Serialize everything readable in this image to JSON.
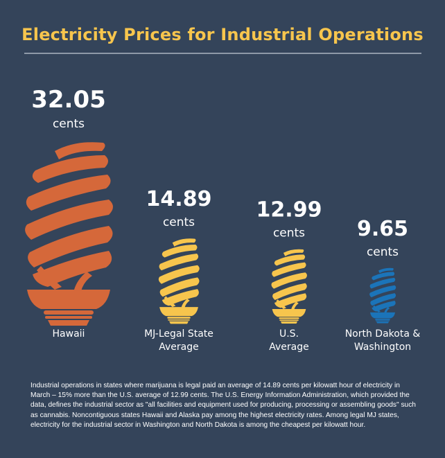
{
  "chart_data": {
    "type": "bar",
    "title": "Electricity Prices for Industrial Operations",
    "categories": [
      [
        "Hawaii"
      ],
      [
        "MJ-Legal State",
        "Average"
      ],
      [
        "U.S.",
        "Average"
      ],
      [
        "North Dakota &",
        "Washington"
      ]
    ],
    "values": [
      32.05,
      14.89,
      12.99,
      9.65
    ],
    "value_labels": [
      "32.05",
      "14.89",
      "12.99",
      "9.65"
    ],
    "unit": "cents",
    "colors": [
      "#d5683a",
      "#f7c54d",
      "#f7c54d",
      "#1b74b9"
    ]
  },
  "footnote": "Industrial operations in states where marijuana is legal paid an average of 14.89 cents per kilowatt hour of electricity in March – 15% more than the U.S. average of 12.99 cents. The U.S. Energy Information Administration, which provided the data, defines the industrial sector as \"all facilities and equipment used for producing, processing or assembling goods\" such as cannabis. Noncontiguous states Hawaii and Alaska pay among the highest electricity rates. Among legal MJ states, electricity for the industrial sector in Washington and North Dakota is among the cheapest per kilowatt hour."
}
